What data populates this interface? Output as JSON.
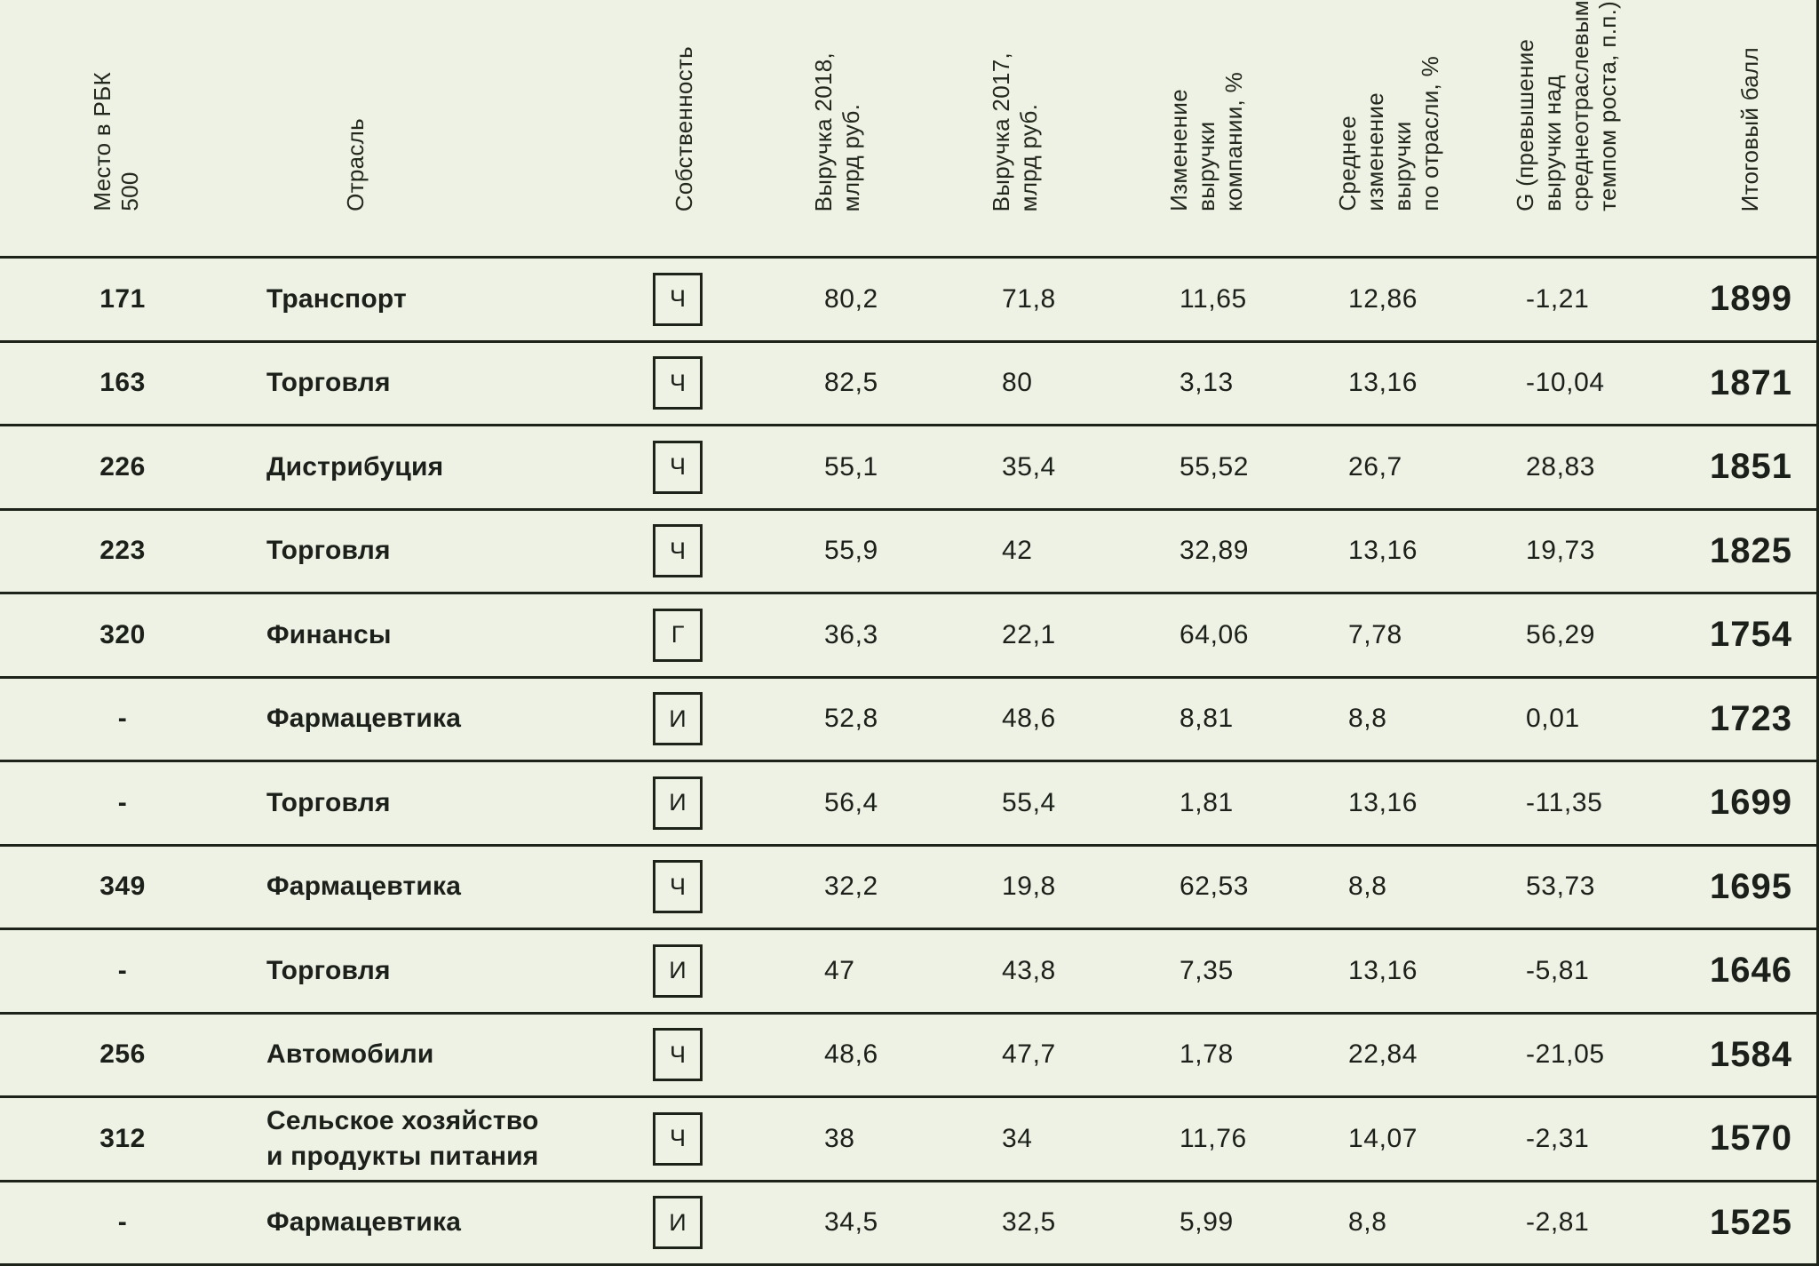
{
  "page": {
    "background": "#edf2e4",
    "line_color": "#1e231a",
    "text_color": "#1c201a"
  },
  "table": {
    "columns": [
      {
        "key": "rank",
        "label": "Место в РБК\n500"
      },
      {
        "key": "industry",
        "label": "Отрасль"
      },
      {
        "key": "ownership",
        "label": "Собственность"
      },
      {
        "key": "rev2018",
        "label": "Выручка 2018,\nмлрд руб."
      },
      {
        "key": "rev2017",
        "label": "Выручка 2017,\nмлрд руб."
      },
      {
        "key": "changeCompany",
        "label": "Изменение\nвыручки\nкомпании, %"
      },
      {
        "key": "changeIndustry",
        "label": "Среднее\nизменение\nвыручки\nпо отрасли, %"
      },
      {
        "key": "g",
        "label": "G (превышение\nвыручки над\nсреднеотраслевым\nтемпом роста, п.п.)"
      },
      {
        "key": "score",
        "label": "Итоговый балл"
      }
    ],
    "rows": [
      {
        "rank": "171",
        "industry": "Транспорт",
        "ownership": "Ч",
        "rev2018": "80,2",
        "rev2017": "71,8",
        "changeCompany": "11,65",
        "changeIndustry": "12,86",
        "g": "-1,21",
        "score": "1899"
      },
      {
        "rank": "163",
        "industry": "Торговля",
        "ownership": "Ч",
        "rev2018": "82,5",
        "rev2017": "80",
        "changeCompany": "3,13",
        "changeIndustry": "13,16",
        "g": "-10,04",
        "score": "1871"
      },
      {
        "rank": "226",
        "industry": "Дистрибуция",
        "ownership": "Ч",
        "rev2018": "55,1",
        "rev2017": "35,4",
        "changeCompany": "55,52",
        "changeIndustry": "26,7",
        "g": "28,83",
        "score": "1851"
      },
      {
        "rank": "223",
        "industry": "Торговля",
        "ownership": "Ч",
        "rev2018": "55,9",
        "rev2017": "42",
        "changeCompany": "32,89",
        "changeIndustry": "13,16",
        "g": "19,73",
        "score": "1825"
      },
      {
        "rank": "320",
        "industry": "Финансы",
        "ownership": "Г",
        "rev2018": "36,3",
        "rev2017": "22,1",
        "changeCompany": "64,06",
        "changeIndustry": "7,78",
        "g": "56,29",
        "score": "1754"
      },
      {
        "rank": "-",
        "industry": "Фармацевтика",
        "ownership": "И",
        "rev2018": "52,8",
        "rev2017": "48,6",
        "changeCompany": "8,81",
        "changeIndustry": "8,8",
        "g": "0,01",
        "score": "1723"
      },
      {
        "rank": "-",
        "industry": "Торговля",
        "ownership": "И",
        "rev2018": "56,4",
        "rev2017": "55,4",
        "changeCompany": "1,81",
        "changeIndustry": "13,16",
        "g": "-11,35",
        "score": "1699"
      },
      {
        "rank": "349",
        "industry": "Фармацевтика",
        "ownership": "Ч",
        "rev2018": "32,2",
        "rev2017": "19,8",
        "changeCompany": "62,53",
        "changeIndustry": "8,8",
        "g": "53,73",
        "score": "1695"
      },
      {
        "rank": "-",
        "industry": "Торговля",
        "ownership": "И",
        "rev2018": "47",
        "rev2017": "43,8",
        "changeCompany": "7,35",
        "changeIndustry": "13,16",
        "g": "-5,81",
        "score": "1646"
      },
      {
        "rank": "256",
        "industry": "Автомобили",
        "ownership": "Ч",
        "rev2018": "48,6",
        "rev2017": "47,7",
        "changeCompany": "1,78",
        "changeIndustry": "22,84",
        "g": "-21,05",
        "score": "1584"
      },
      {
        "rank": "312",
        "industry": "Сельское хозяйство\nи продукты питания",
        "ownership": "Ч",
        "rev2018": "38",
        "rev2017": "34",
        "changeCompany": "11,76",
        "changeIndustry": "14,07",
        "g": "-2,31",
        "score": "1570"
      },
      {
        "rank": "-",
        "industry": "Фармацевтика",
        "ownership": "И",
        "rev2018": "34,5",
        "rev2017": "32,5",
        "changeCompany": "5,99",
        "changeIndustry": "8,8",
        "g": "-2,81",
        "score": "1525"
      }
    ]
  },
  "chart_data": {
    "type": "table",
    "title": "",
    "columns": [
      "Место в РБК 500",
      "Отрасль",
      "Собственность",
      "Выручка 2018, млрд руб.",
      "Выручка 2017, млрд руб.",
      "Изменение выручки компании, %",
      "Среднее изменение выручки по отрасли, %",
      "G (превышение выручки над среднеотраслевым темпом роста, п.п.)",
      "Итоговый балл"
    ],
    "rows": [
      [
        "171",
        "Транспорт",
        "Ч",
        80.2,
        71.8,
        11.65,
        12.86,
        -1.21,
        1899
      ],
      [
        "163",
        "Торговля",
        "Ч",
        82.5,
        80,
        3.13,
        13.16,
        -10.04,
        1871
      ],
      [
        "226",
        "Дистрибуция",
        "Ч",
        55.1,
        35.4,
        55.52,
        26.7,
        28.83,
        1851
      ],
      [
        "223",
        "Торговля",
        "Ч",
        55.9,
        42,
        32.89,
        13.16,
        19.73,
        1825
      ],
      [
        "320",
        "Финансы",
        "Г",
        36.3,
        22.1,
        64.06,
        7.78,
        56.29,
        1754
      ],
      [
        "-",
        "Фармацевтика",
        "И",
        52.8,
        48.6,
        8.81,
        8.8,
        0.01,
        1723
      ],
      [
        "-",
        "Торговля",
        "И",
        56.4,
        55.4,
        1.81,
        13.16,
        -11.35,
        1699
      ],
      [
        "349",
        "Фармацевтика",
        "Ч",
        32.2,
        19.8,
        62.53,
        8.8,
        53.73,
        1695
      ],
      [
        "-",
        "Торговля",
        "И",
        47,
        43.8,
        7.35,
        13.16,
        -5.81,
        1646
      ],
      [
        "256",
        "Автомобили",
        "Ч",
        48.6,
        47.7,
        1.78,
        22.84,
        -21.05,
        1584
      ],
      [
        "312",
        "Сельское хозяйство и продукты питания",
        "Ч",
        38,
        34,
        11.76,
        14.07,
        -2.31,
        1570
      ],
      [
        "-",
        "Фармацевтика",
        "И",
        34.5,
        32.5,
        5.99,
        8.8,
        -2.81,
        1525
      ]
    ]
  }
}
